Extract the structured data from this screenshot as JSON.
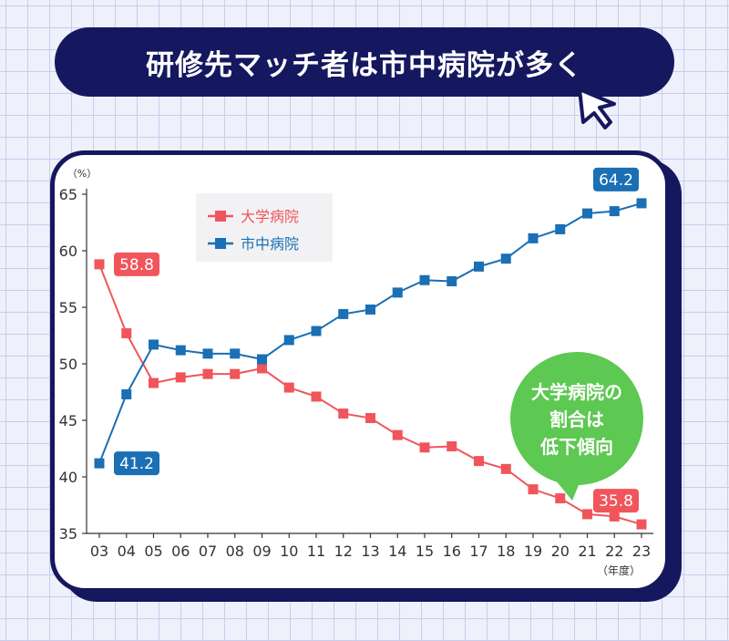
{
  "header": {
    "title": "研修先マッチ者は市中病院が多く"
  },
  "icons": {
    "cursor": "mouse-pointer-icon"
  },
  "colors": {
    "navy": "#15185e",
    "university": "#f0555c",
    "city": "#1a6fb5",
    "bubble": "#5dc852"
  },
  "callout": {
    "lines": [
      "大学病院の",
      "割合は",
      "低下傾向"
    ]
  },
  "chart_data": {
    "type": "line",
    "yunit": "（%）",
    "xunit": "（年度）",
    "ylim": [
      35,
      65
    ],
    "yticks": [
      35,
      40,
      45,
      50,
      55,
      60,
      65
    ],
    "categories": [
      "03",
      "04",
      "05",
      "06",
      "07",
      "08",
      "09",
      "10",
      "11",
      "12",
      "13",
      "14",
      "15",
      "16",
      "17",
      "18",
      "19",
      "20",
      "21",
      "22",
      "23"
    ],
    "series": [
      {
        "name": "大学病院",
        "color": "#f0555c",
        "values": [
          58.8,
          52.7,
          48.3,
          48.8,
          49.1,
          49.1,
          49.6,
          47.9,
          47.1,
          45.6,
          45.2,
          43.7,
          42.6,
          42.7,
          41.4,
          40.7,
          38.9,
          38.1,
          36.7,
          36.5,
          35.8
        ]
      },
      {
        "name": "市中病院",
        "color": "#1a6fb5",
        "values": [
          41.2,
          47.3,
          51.7,
          51.2,
          50.9,
          50.9,
          50.4,
          52.1,
          52.9,
          54.4,
          54.8,
          56.3,
          57.4,
          57.3,
          58.6,
          59.3,
          61.1,
          61.9,
          63.3,
          63.5,
          64.2
        ]
      }
    ],
    "data_labels": [
      {
        "series": 0,
        "index": 0,
        "text": "58.8"
      },
      {
        "series": 1,
        "index": 0,
        "text": "41.2"
      },
      {
        "series": 1,
        "index": 20,
        "text": "64.2"
      },
      {
        "series": 0,
        "index": 20,
        "text": "35.8"
      }
    ],
    "legend": {
      "placement": "top-left"
    },
    "grid": false
  }
}
